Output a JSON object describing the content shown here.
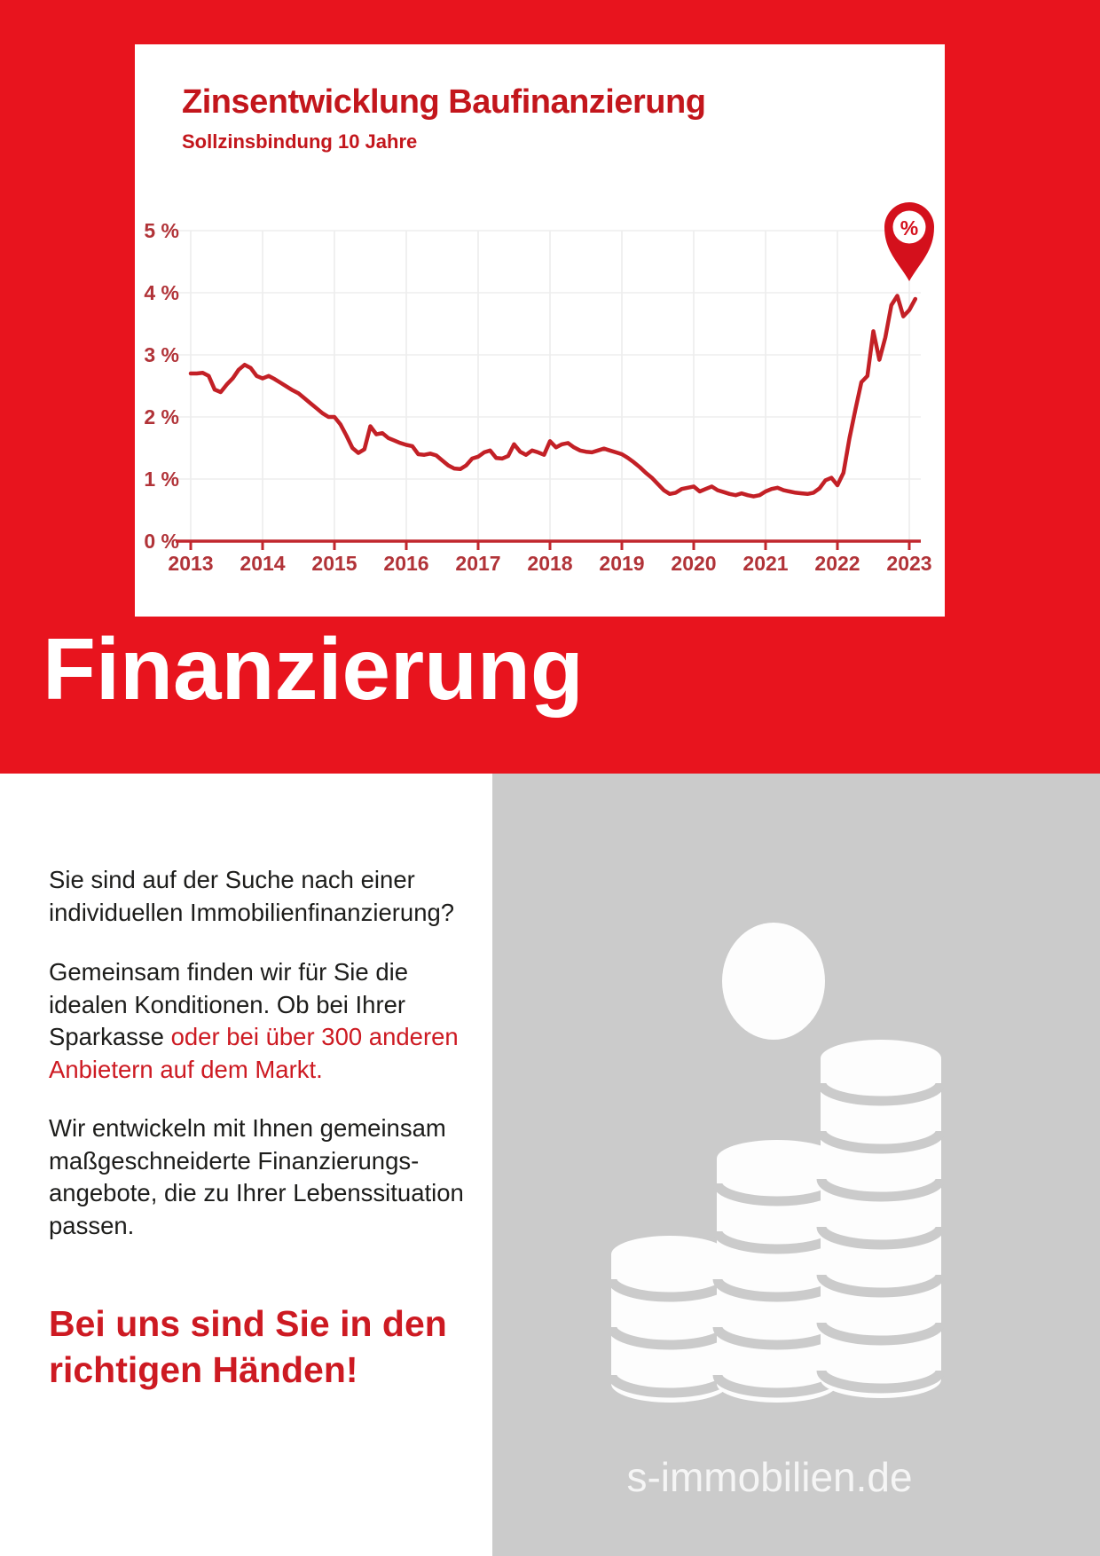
{
  "colors": {
    "section_red": "#e8141e",
    "chart_title_red": "#c3161c",
    "line_red": "#c32026",
    "axis_red": "#c1272d",
    "tick_label_red": "#b13338",
    "accent_red": "#cd1a22",
    "text_ink": "#1d1d1b",
    "panel_gray": "#cbcbcb",
    "grid_gray": "#ededed",
    "pin_red": "#d4101c",
    "coin_white": "#fdfdfd",
    "site_text": "#f5f5f5"
  },
  "chart": {
    "title": "Zinsentwicklung Baufinanzierung",
    "subtitle": "Sollzinsbindung 10 Jahre",
    "marker_icon": "percent-pin-icon",
    "marker_symbol": "%"
  },
  "chart_data": {
    "type": "line",
    "title": "Zinsentwicklung Baufinanzierung",
    "subtitle": "Sollzinsbindung 10 Jahre",
    "xlabels": [
      "2013",
      "2014",
      "2015",
      "2016",
      "2017",
      "2018",
      "2019",
      "2020",
      "2021",
      "2022",
      "2023"
    ],
    "y_tick_labels": [
      "0 %",
      "1 %",
      "2 %",
      "3 %",
      "4 %",
      "5 %"
    ],
    "ylim": [
      0,
      5
    ],
    "x_start_year": 2013,
    "points_per_year": 12,
    "grid": true,
    "legend": "none",
    "values": [
      2.7,
      2.7,
      2.71,
      2.66,
      2.44,
      2.4,
      2.52,
      2.62,
      2.76,
      2.84,
      2.79,
      2.66,
      2.62,
      2.66,
      2.61,
      2.55,
      2.49,
      2.43,
      2.38,
      2.3,
      2.22,
      2.14,
      2.06,
      2.0,
      2.0,
      1.88,
      1.7,
      1.5,
      1.42,
      1.48,
      1.85,
      1.72,
      1.74,
      1.66,
      1.62,
      1.58,
      1.55,
      1.53,
      1.4,
      1.39,
      1.41,
      1.38,
      1.3,
      1.22,
      1.17,
      1.16,
      1.22,
      1.33,
      1.36,
      1.43,
      1.46,
      1.34,
      1.33,
      1.37,
      1.56,
      1.44,
      1.39,
      1.46,
      1.43,
      1.39,
      1.61,
      1.51,
      1.56,
      1.58,
      1.51,
      1.46,
      1.44,
      1.43,
      1.46,
      1.49,
      1.46,
      1.43,
      1.4,
      1.34,
      1.27,
      1.19,
      1.1,
      1.02,
      0.92,
      0.82,
      0.76,
      0.78,
      0.84,
      0.86,
      0.88,
      0.8,
      0.84,
      0.88,
      0.82,
      0.79,
      0.76,
      0.74,
      0.77,
      0.74,
      0.72,
      0.74,
      0.8,
      0.84,
      0.86,
      0.82,
      0.8,
      0.78,
      0.77,
      0.76,
      0.78,
      0.85,
      0.98,
      1.02,
      0.9,
      1.1,
      1.65,
      2.12,
      2.56,
      2.66,
      3.38,
      2.92,
      3.28,
      3.8,
      3.95,
      3.62,
      3.72,
      3.9
    ]
  },
  "hero": {
    "title": "Finanzierung"
  },
  "content": {
    "p1": "Sie sind auf der Suche nach einer\nindividuellen Immobilienfinanzierung?",
    "p2_black": "Gemeinsam finden wir für Sie die\nidealen Konditionen. Ob bei Ihrer\nSparkasse ",
    "p2_red": "oder bei über 300 anderen\nAnbietern auf dem Markt.",
    "p3": "Wir entwickeln mit Ihnen gemeinsam\nmaßgeschneiderte Finanzierungs-\nangebote, die zu Ihrer Lebenssituation\npassen.",
    "headline": "Bei uns sind Sie in den\nrichtigen Händen!"
  },
  "pictogram": {
    "name": "person-with-coin-stacks"
  },
  "footer": {
    "site": "s-immobilien.de"
  }
}
